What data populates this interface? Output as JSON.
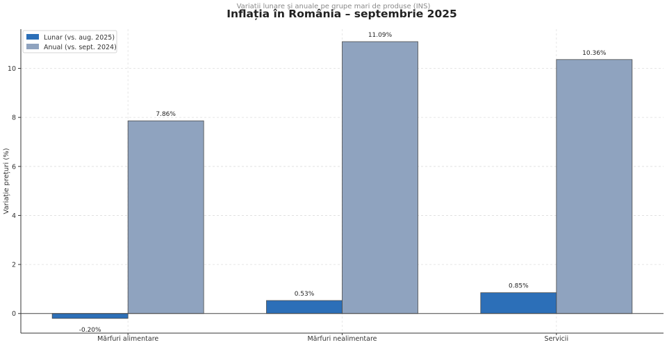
{
  "chart_data": {
    "type": "bar",
    "title": "Inflația în România – septembrie 2025",
    "subtitle": "Variații lunare și anuale pe grupe mari de produse (INS)",
    "ylabel": "Variație prețuri (%)",
    "xlabel": "",
    "categories": [
      "Mărfuri alimentare",
      "Mărfuri nealimentare",
      "Servicii"
    ],
    "series": [
      {
        "name": "Lunar (vs. aug. 2025)",
        "values": [
          -0.2,
          0.53,
          0.85
        ],
        "labels": [
          "-0.20%",
          "0.53%",
          "0.85%"
        ],
        "color": "#2c6fb8"
      },
      {
        "name": "Anual (vs. sept. 2024)",
        "values": [
          7.86,
          11.09,
          10.36
        ],
        "labels": [
          "7.86%",
          "11.09%",
          "10.36%"
        ],
        "color": "#8fa3bf"
      }
    ],
    "ylim": [
      -0.8,
      11.6
    ],
    "yticks": [
      0,
      2,
      4,
      6,
      8,
      10
    ],
    "grid": true,
    "legend_position": "top-left"
  }
}
